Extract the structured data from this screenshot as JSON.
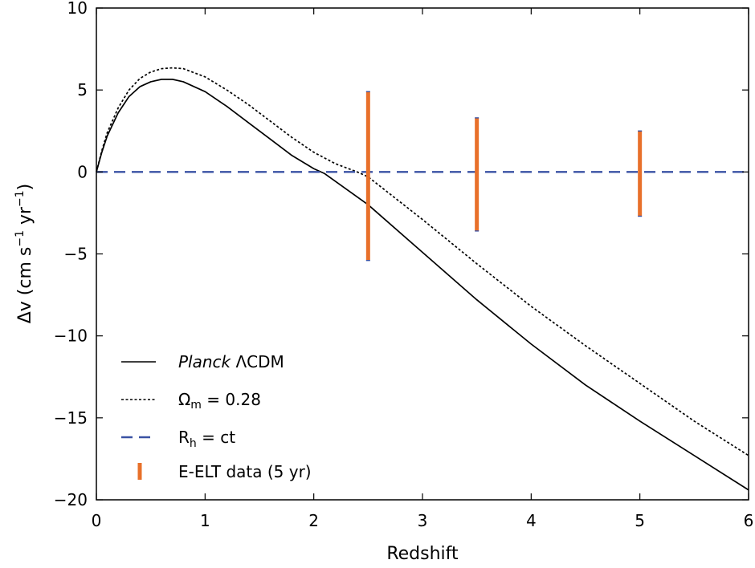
{
  "chart_data": {
    "type": "line",
    "xlabel": "Redshift",
    "ylabel_prefix": "Δv (cm s",
    "ylabel_sup1": "−1",
    "ylabel_mid": " yr",
    "ylabel_sup2": "−1",
    "ylabel_suffix": ")",
    "xlim": [
      0,
      6
    ],
    "ylim": [
      -20,
      10
    ],
    "xticks": [
      "0",
      "1",
      "2",
      "3",
      "4",
      "5",
      "6"
    ],
    "yticks": [
      "10",
      "5",
      "0",
      "−5",
      "−10",
      "−15",
      "−20"
    ],
    "grid": false,
    "legend_position": "lower-left",
    "series": [
      {
        "legend_italic": "Planck",
        "legend_rest": " ΛCDM",
        "style": "solid",
        "color": "#000000",
        "x": [
          0,
          0.05,
          0.1,
          0.2,
          0.3,
          0.4,
          0.5,
          0.6,
          0.7,
          0.8,
          1.0,
          1.2,
          1.4,
          1.6,
          1.8,
          2.0,
          2.1,
          2.5,
          3.0,
          3.5,
          4.0,
          4.5,
          5.0,
          5.5,
          6.0
        ],
        "y": [
          0,
          1.2,
          2.2,
          3.6,
          4.6,
          5.2,
          5.5,
          5.65,
          5.65,
          5.5,
          4.9,
          4.0,
          3.0,
          2.0,
          1.0,
          0.2,
          -0.1,
          -2.0,
          -4.9,
          -7.8,
          -10.5,
          -13.0,
          -15.2,
          -17.3,
          -19.4
        ]
      },
      {
        "legend_prefix": "Ω",
        "legend_sub": "m",
        "legend_suffix": " = 0.28",
        "style": "dotted",
        "color": "#000000",
        "x": [
          0,
          0.05,
          0.1,
          0.2,
          0.3,
          0.4,
          0.5,
          0.6,
          0.7,
          0.8,
          1.0,
          1.2,
          1.4,
          1.6,
          1.8,
          2.0,
          2.2,
          2.4,
          2.5,
          3.0,
          3.5,
          4.0,
          4.5,
          5.0,
          5.5,
          6.0
        ],
        "y": [
          0,
          1.3,
          2.4,
          3.9,
          5.0,
          5.7,
          6.1,
          6.3,
          6.35,
          6.3,
          5.8,
          5.0,
          4.1,
          3.1,
          2.1,
          1.2,
          0.5,
          0.0,
          -0.3,
          -2.9,
          -5.6,
          -8.2,
          -10.6,
          -12.9,
          -15.2,
          -17.3
        ]
      },
      {
        "legend_prefix": "R",
        "legend_sub": "h",
        "legend_suffix": " = ct",
        "style": "dashed",
        "color": "#3a52a4",
        "x": [
          0,
          6
        ],
        "y": [
          0,
          0
        ]
      }
    ],
    "errorbars": {
      "legend": "E-ELT data (5 yr)",
      "color": "#e8702a",
      "points": [
        {
          "x": 2.5,
          "low": -5.4,
          "high": 4.9
        },
        {
          "x": 3.5,
          "low": -3.6,
          "high": 3.3
        },
        {
          "x": 5.0,
          "low": -2.7,
          "high": 2.5
        }
      ]
    }
  }
}
